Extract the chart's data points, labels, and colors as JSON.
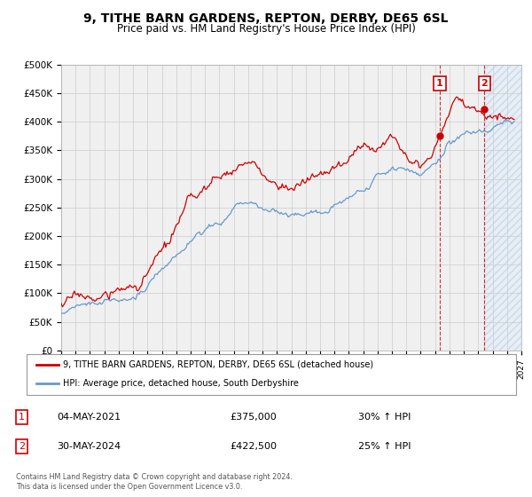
{
  "title": "9, TITHE BARN GARDENS, REPTON, DERBY, DE65 6SL",
  "subtitle": "Price paid vs. HM Land Registry's House Price Index (HPI)",
  "ylabel_ticks": [
    "£0",
    "£50K",
    "£100K",
    "£150K",
    "£200K",
    "£250K",
    "£300K",
    "£350K",
    "£400K",
    "£450K",
    "£500K"
  ],
  "ytick_values": [
    0,
    50000,
    100000,
    150000,
    200000,
    250000,
    300000,
    350000,
    400000,
    450000,
    500000
  ],
  "xmin": 1995.0,
  "xmax": 2027.0,
  "ymin": 0,
  "ymax": 500000,
  "legend_label_red": "9, TITHE BARN GARDENS, REPTON, DERBY, DE65 6SL (detached house)",
  "legend_label_blue": "HPI: Average price, detached house, South Derbyshire",
  "sale1_date": "04-MAY-2021",
  "sale1_price": 375000,
  "sale1_label": "£375,000",
  "sale1_pct": "30% ↑ HPI",
  "sale2_date": "30-MAY-2024",
  "sale2_price": 422500,
  "sale2_label": "£422,500",
  "sale2_pct": "25% ↑ HPI",
  "footnote": "Contains HM Land Registry data © Crown copyright and database right 2024.\nThis data is licensed under the Open Government Licence v3.0.",
  "red_color": "#cc0000",
  "blue_color": "#6699cc",
  "blue_fill_color": "#ddeeff",
  "annotation_box_color": "#cc0000",
  "background_color": "#ffffff",
  "plot_bg_color": "#f0f0f0",
  "grid_color": "#cccccc",
  "sale1_x": 2021.33,
  "sale2_x": 2024.42,
  "hatch_start": 2024.42
}
